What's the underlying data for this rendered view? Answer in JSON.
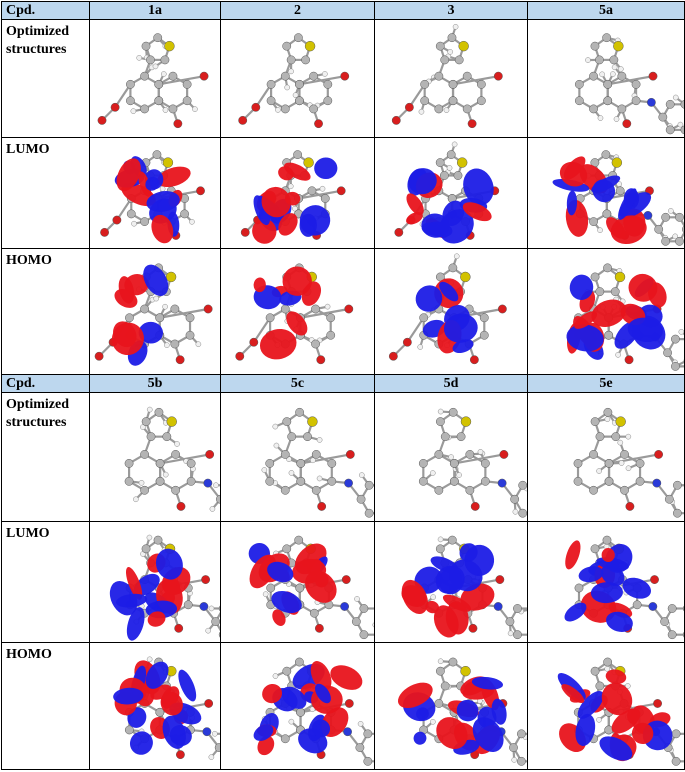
{
  "header_top": [
    "Cpd.",
    "1a",
    "2",
    "3",
    "5a"
  ],
  "header_bottom": [
    "Cpd.",
    "5b",
    "5c",
    "5d",
    "5e"
  ],
  "row_labels": {
    "optimized": "Optimized structures",
    "lumo": "LUMO",
    "homo": "HOMO"
  },
  "colors": {
    "header_bg": "#bdd7ee",
    "lobe_red": "#e8141c",
    "lobe_blue": "#1c1ce6",
    "atom_carbon": "#b4b4b4",
    "atom_hydrogen": "#f0f0f0",
    "atom_oxygen": "#d81e1e",
    "atom_nitrogen": "#2a3ad8",
    "atom_sulfur": "#d2c200"
  }
}
